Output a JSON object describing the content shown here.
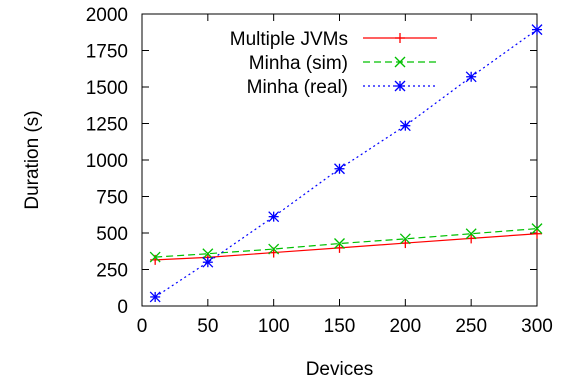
{
  "chart_data": {
    "type": "line",
    "xlabel": "Devices",
    "ylabel": "Duration (s)",
    "xlim": [
      0,
      300
    ],
    "ylim": [
      0,
      2000
    ],
    "xticks": [
      0,
      50,
      100,
      150,
      200,
      250,
      300
    ],
    "yticks": [
      0,
      250,
      500,
      750,
      1000,
      1250,
      1500,
      1750,
      2000
    ],
    "grid": false,
    "legend_position": "top-left",
    "series": [
      {
        "name": "Multiple JVMs",
        "color": "#ff0000",
        "marker": "plus",
        "dash": "solid",
        "x": [
          10,
          50,
          100,
          150,
          200,
          250,
          300
        ],
        "y": [
          316,
          333,
          366,
          398,
          431,
          463,
          495
        ]
      },
      {
        "name": "Minha (sim)",
        "color": "#00c000",
        "marker": "cross",
        "dash": "dashed",
        "x": [
          10,
          50,
          100,
          150,
          200,
          250,
          300
        ],
        "y": [
          335,
          358,
          390,
          428,
          460,
          495,
          530
        ]
      },
      {
        "name": "Minha (real)",
        "color": "#0000ff",
        "marker": "star",
        "dash": "dotted",
        "x": [
          10,
          50,
          100,
          150,
          200,
          250,
          300
        ],
        "y": [
          62,
          300,
          612,
          940,
          1235,
          1570,
          1893
        ]
      }
    ]
  }
}
